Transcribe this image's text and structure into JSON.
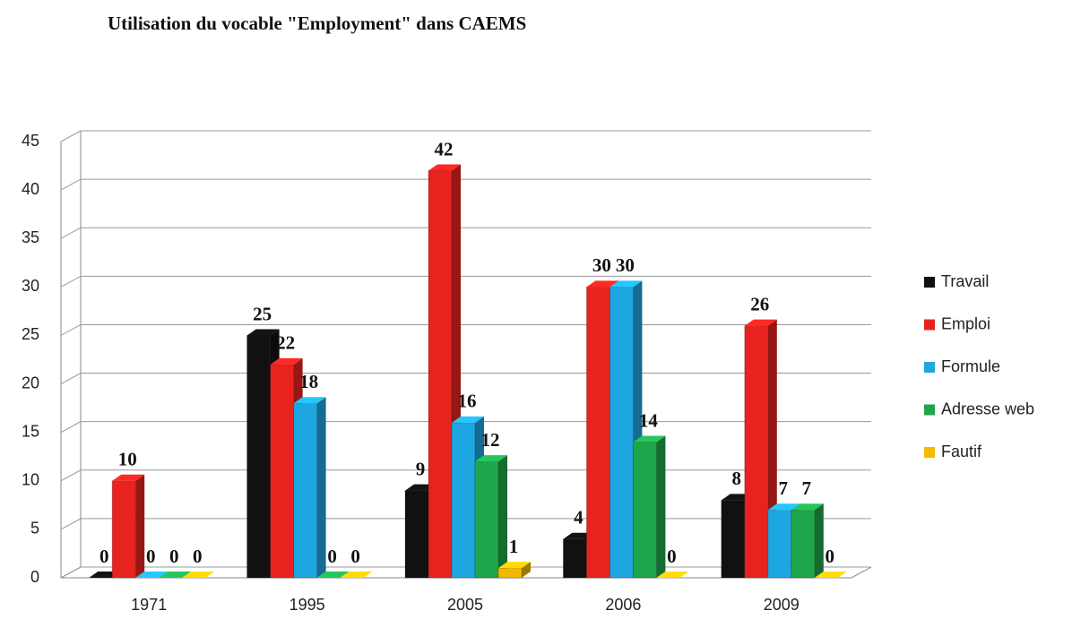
{
  "chart_data": {
    "type": "bar3d",
    "title": "Utilisation du vocable \"Employment\" dans CAEMS",
    "categories": [
      "1971",
      "1995",
      "2005",
      "2006",
      "2009"
    ],
    "series": [
      {
        "name": "Travail",
        "color": "#111111",
        "values": [
          0,
          25,
          9,
          4,
          8
        ]
      },
      {
        "name": "Emploi",
        "color": "#e8231f",
        "values": [
          10,
          22,
          42,
          30,
          26
        ]
      },
      {
        "name": "Formule",
        "color": "#1ea6e0",
        "values": [
          0,
          18,
          16,
          30,
          7
        ]
      },
      {
        "name": "Adresse web",
        "color": "#1fa64a",
        "values": [
          0,
          0,
          12,
          14,
          7
        ]
      },
      {
        "name": "Fautif",
        "color": "#f5b800",
        "values": [
          0,
          0,
          1,
          0,
          0
        ]
      }
    ],
    "ylim": [
      0,
      45
    ],
    "yticks": [
      0,
      5,
      10,
      15,
      20,
      25,
      30,
      35,
      40,
      45
    ],
    "grid": true,
    "legend": "right"
  }
}
